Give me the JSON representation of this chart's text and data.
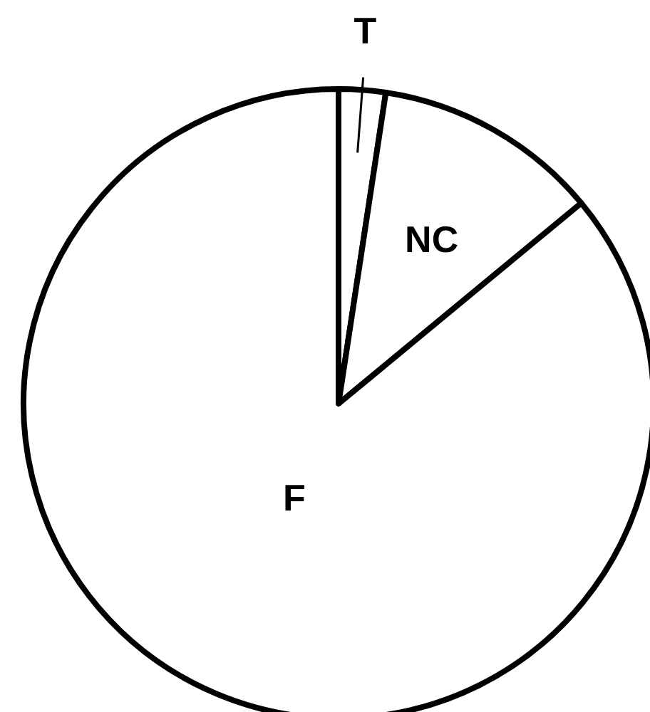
{
  "chart_data": {
    "type": "pie",
    "categories": [
      "T",
      "NC",
      "F"
    ],
    "values": [
      2.4,
      11.6,
      86
    ],
    "colors": [
      "#ffffff",
      "#ffffff",
      "#ffffff"
    ]
  }
}
